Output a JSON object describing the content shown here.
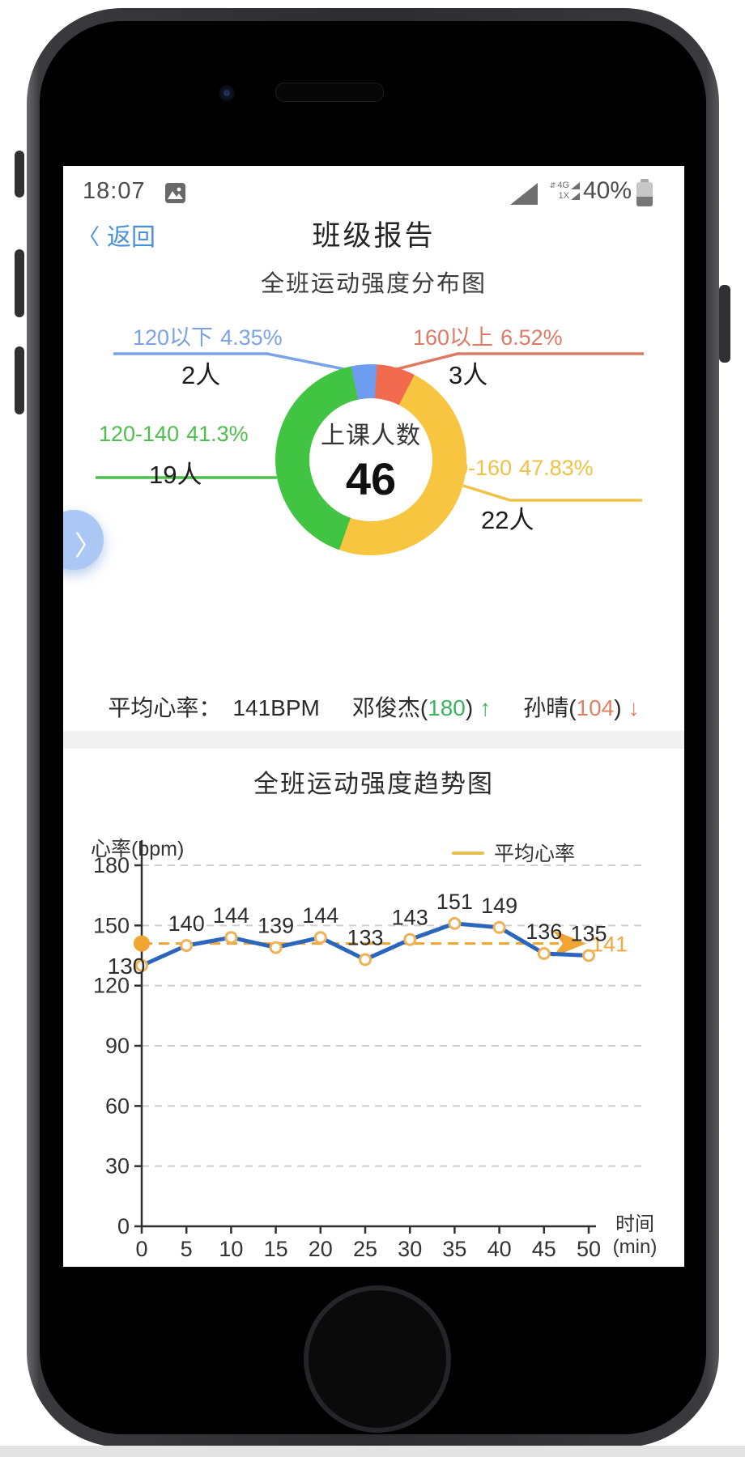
{
  "status_bar": {
    "time": "18:07",
    "signal_4g": "4G",
    "signal_1x": "1X",
    "battery_percent": "40%"
  },
  "header": {
    "back_chevron": "〈",
    "back_label": "返回",
    "title": "班级报告"
  },
  "distribution": {
    "title": "全班运动强度分布图",
    "center_label": "上课人数",
    "center_value": "46",
    "side_tab_chevron": "〉",
    "labels": {
      "below120": {
        "range": "120以下",
        "percent": "4.35%",
        "count": "2人"
      },
      "above160": {
        "range": "160以上",
        "percent": "6.52%",
        "count": "3人"
      },
      "r120_140": {
        "range": "120-140",
        "percent": "41.3%",
        "count": "19人"
      },
      "r140_160": {
        "range": "140-160",
        "percent": "47.83%",
        "count": "22人"
      }
    },
    "label_colors": {
      "below120": "#79a3e6",
      "above160": "#de7a63",
      "r120_140": "#4cbf4c",
      "r140_160": "#efc246"
    }
  },
  "stats": {
    "avg_label": "平均心率：",
    "avg_value": "141BPM",
    "top_name": "邓俊杰(",
    "top_value": "180",
    "top_close": ")",
    "top_arrow": "↑",
    "low_name": "孙晴(",
    "low_value": "104",
    "low_close": ")",
    "low_arrow": "↓"
  },
  "trend": {
    "title": "全班运动强度趋势图",
    "y_axis_label": "心率(bpm)",
    "legend_label": "平均心率",
    "x_axis_unit_line1": "时间",
    "x_axis_unit_line2": "(min)",
    "average_label": "141"
  },
  "chart_data": [
    {
      "type": "pie",
      "subtype": "donut",
      "title": "全班运动强度分布图",
      "center_label": "上课人数",
      "center_value": 46,
      "start_angle_deg": -12,
      "slices": [
        {
          "label": "120以下",
          "percent": 4.35,
          "count": 2,
          "color": "#6e9cf0"
        },
        {
          "label": "160以上",
          "percent": 6.52,
          "count": 3,
          "color": "#f16a4d"
        },
        {
          "label": "140-160",
          "percent": 47.83,
          "count": 22,
          "color": "#f7c53f"
        },
        {
          "label": "120-140",
          "percent": 41.3,
          "count": 19,
          "color": "#41c441"
        }
      ]
    },
    {
      "type": "line",
      "title": "全班运动强度趋势图",
      "xlabel": "时间(min)",
      "ylabel": "心率(bpm)",
      "legend": [
        "平均心率"
      ],
      "x": [
        0,
        5,
        10,
        15,
        20,
        25,
        30,
        35,
        40,
        45,
        50
      ],
      "values": [
        130,
        140,
        144,
        139,
        144,
        133,
        143,
        151,
        149,
        136,
        135
      ],
      "average_value": 141,
      "ylim": [
        0,
        180
      ],
      "yticks": [
        0,
        30,
        60,
        90,
        120,
        150,
        180
      ],
      "grid": true,
      "line_color": "#2a66bd",
      "marker_stroke": "#efb257",
      "average_color": "#f0a432",
      "average_text_color": "#f0a843",
      "grid_color": "#cfcfcf",
      "axis_color": "#2f2f2f",
      "label_color": "#2c2c2c"
    }
  ]
}
